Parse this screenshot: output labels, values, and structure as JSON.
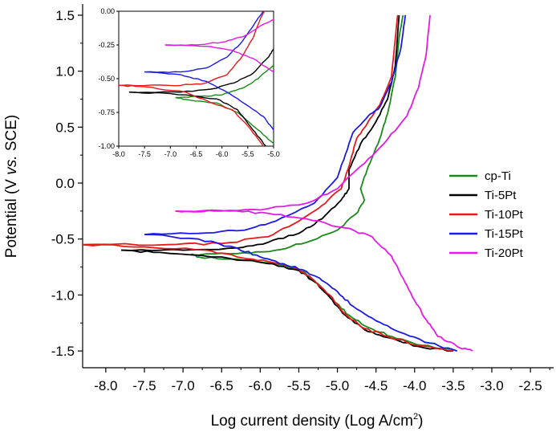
{
  "chart_data": [
    {
      "type": "line",
      "title": "",
      "xlabel": "Log current density (Log A/cm",
      "xlabel_sup": "2",
      "xlabel_close": ")",
      "ylabel_pre": "Potential (V ",
      "ylabel_italic": "vs.",
      "ylabel_post": " SCE)",
      "xlim": [
        -8.3,
        -2.2
      ],
      "ylim": [
        -1.65,
        1.6
      ],
      "x_ticks": [
        "-8.0",
        "-7.5",
        "-7.0",
        "-6.5",
        "-6.0",
        "-5.5",
        "-5.0",
        "-4.5",
        "-4.0",
        "-3.5",
        "-3.0",
        "-2.5"
      ],
      "x_tick_values": [
        -8.0,
        -7.5,
        -7.0,
        -6.5,
        -6.0,
        -5.5,
        -5.0,
        -4.5,
        -4.0,
        -3.5,
        -3.0,
        -2.5
      ],
      "y_ticks": [
        "1.5",
        "1.0",
        "0.5",
        "0.0",
        "-0.5",
        "-1.0",
        "-1.5"
      ],
      "y_tick_values": [
        1.5,
        1.0,
        0.5,
        0.0,
        -0.5,
        -1.0,
        -1.5
      ],
      "grid": false,
      "legend_position": "right",
      "series": [
        {
          "name": "cp-Ti",
          "color": "#1a8a1a",
          "cathodic": [
            [
              -3.45,
              -1.5
            ],
            [
              -3.9,
              -1.45
            ],
            [
              -4.3,
              -1.37
            ],
            [
              -4.6,
              -1.29
            ],
            [
              -4.85,
              -1.18
            ],
            [
              -5.05,
              -1.05
            ],
            [
              -5.25,
              -0.9
            ],
            [
              -5.45,
              -0.79
            ],
            [
              -5.8,
              -0.72
            ],
            [
              -6.3,
              -0.68
            ],
            [
              -6.8,
              -0.66
            ],
            [
              -6.9,
              -0.64
            ]
          ],
          "anodic": [
            [
              -6.9,
              -0.64
            ],
            [
              -6.3,
              -0.63
            ],
            [
              -5.8,
              -0.6
            ],
            [
              -5.4,
              -0.53
            ],
            [
              -5.0,
              -0.42
            ],
            [
              -4.75,
              -0.27
            ],
            [
              -4.65,
              -0.15
            ],
            [
              -4.7,
              -0.05
            ],
            [
              -4.6,
              0.15
            ],
            [
              -4.45,
              0.4
            ],
            [
              -4.35,
              0.62
            ],
            [
              -4.25,
              0.95
            ],
            [
              -4.2,
              1.3
            ],
            [
              -4.15,
              1.5
            ]
          ]
        },
        {
          "name": "Ti-5Pt",
          "color": "#000000",
          "cathodic": [
            [
              -3.5,
              -1.5
            ],
            [
              -3.95,
              -1.46
            ],
            [
              -4.35,
              -1.38
            ],
            [
              -4.65,
              -1.31
            ],
            [
              -4.9,
              -1.18
            ],
            [
              -5.1,
              -1.02
            ],
            [
              -5.3,
              -0.88
            ],
            [
              -5.5,
              -0.78
            ],
            [
              -5.9,
              -0.72
            ],
            [
              -6.5,
              -0.66
            ],
            [
              -7.3,
              -0.62
            ],
            [
              -7.8,
              -0.6
            ]
          ],
          "anodic": [
            [
              -7.8,
              -0.6
            ],
            [
              -7.0,
              -0.6
            ],
            [
              -6.3,
              -0.58
            ],
            [
              -5.9,
              -0.53
            ],
            [
              -5.5,
              -0.45
            ],
            [
              -5.2,
              -0.32
            ],
            [
              -4.95,
              -0.15
            ],
            [
              -4.85,
              -0.05
            ],
            [
              -4.85,
              0.12
            ],
            [
              -4.7,
              0.35
            ],
            [
              -4.5,
              0.55
            ],
            [
              -4.35,
              0.75
            ],
            [
              -4.25,
              1.05
            ],
            [
              -4.2,
              1.5
            ]
          ]
        },
        {
          "name": "Ti-10Pt",
          "color": "#e41a1a",
          "cathodic": [
            [
              -3.5,
              -1.5
            ],
            [
              -3.95,
              -1.45
            ],
            [
              -4.35,
              -1.37
            ],
            [
              -4.65,
              -1.3
            ],
            [
              -4.9,
              -1.17
            ],
            [
              -5.1,
              -1.0
            ],
            [
              -5.3,
              -0.87
            ],
            [
              -5.5,
              -0.77
            ],
            [
              -5.9,
              -0.7
            ],
            [
              -6.3,
              -0.66
            ],
            [
              -6.7,
              -0.6
            ],
            [
              -7.5,
              -0.57
            ],
            [
              -8.3,
              -0.55
            ]
          ],
          "anodic": [
            [
              -8.3,
              -0.55
            ],
            [
              -7.2,
              -0.55
            ],
            [
              -6.5,
              -0.54
            ],
            [
              -5.9,
              -0.48
            ],
            [
              -5.5,
              -0.34
            ],
            [
              -5.2,
              -0.2
            ],
            [
              -4.95,
              -0.05
            ],
            [
              -4.85,
              0.15
            ],
            [
              -4.75,
              0.4
            ],
            [
              -4.6,
              0.55
            ],
            [
              -4.45,
              0.7
            ],
            [
              -4.3,
              0.95
            ],
            [
              -4.22,
              1.5
            ]
          ]
        },
        {
          "name": "Ti-15Pt",
          "color": "#1a1ae4",
          "cathodic": [
            [
              -3.45,
              -1.5
            ],
            [
              -3.8,
              -1.43
            ],
            [
              -4.2,
              -1.33
            ],
            [
              -4.5,
              -1.23
            ],
            [
              -4.8,
              -1.1
            ],
            [
              -5.0,
              -0.97
            ],
            [
              -5.2,
              -0.87
            ],
            [
              -5.4,
              -0.79
            ],
            [
              -5.7,
              -0.72
            ],
            [
              -6.0,
              -0.66
            ],
            [
              -6.3,
              -0.58
            ],
            [
              -6.8,
              -0.5
            ],
            [
              -7.5,
              -0.46
            ]
          ],
          "anodic": [
            [
              -7.5,
              -0.46
            ],
            [
              -6.8,
              -0.45
            ],
            [
              -6.2,
              -0.42
            ],
            [
              -5.8,
              -0.34
            ],
            [
              -5.3,
              -0.18
            ],
            [
              -5.0,
              0.05
            ],
            [
              -4.9,
              0.25
            ],
            [
              -4.8,
              0.45
            ],
            [
              -4.6,
              0.6
            ],
            [
              -4.45,
              0.68
            ],
            [
              -4.3,
              0.9
            ],
            [
              -4.18,
              1.2
            ],
            [
              -4.12,
              1.5
            ]
          ]
        },
        {
          "name": "Ti-20Pt",
          "color": "#e41ae4",
          "cathodic": [
            [
              -3.25,
              -1.5
            ],
            [
              -3.45,
              -1.46
            ],
            [
              -3.7,
              -1.37
            ],
            [
              -3.85,
              -1.22
            ],
            [
              -4.0,
              -1.05
            ],
            [
              -4.15,
              -0.85
            ],
            [
              -4.3,
              -0.65
            ],
            [
              -4.55,
              -0.48
            ],
            [
              -4.9,
              -0.4
            ],
            [
              -5.4,
              -0.32
            ],
            [
              -5.9,
              -0.27
            ],
            [
              -6.4,
              -0.25
            ],
            [
              -7.1,
              -0.25
            ]
          ],
          "anodic": [
            [
              -7.1,
              -0.25
            ],
            [
              -6.6,
              -0.25
            ],
            [
              -6.0,
              -0.24
            ],
            [
              -5.4,
              -0.18
            ],
            [
              -5.0,
              -0.05
            ],
            [
              -4.7,
              0.15
            ],
            [
              -4.4,
              0.35
            ],
            [
              -4.1,
              0.6
            ],
            [
              -3.95,
              0.85
            ],
            [
              -3.85,
              1.15
            ],
            [
              -3.8,
              1.5
            ]
          ]
        }
      ]
    },
    {
      "type": "line",
      "title": "",
      "xlim": [
        -8.0,
        -5.0
      ],
      "ylim": [
        -1.0,
        0.0
      ],
      "x_ticks": [
        "-8.0",
        "-7.5",
        "-7.0",
        "-6.5",
        "-6.0",
        "-5.5",
        "-5.0"
      ],
      "x_tick_values": [
        -8.0,
        -7.5,
        -7.0,
        -6.5,
        -6.0,
        -5.5,
        -5.0
      ],
      "y_ticks": [
        "0.00",
        "-0.25",
        "-0.50",
        "-0.75",
        "-1.00"
      ],
      "y_tick_values": [
        0.0,
        -0.25,
        -0.5,
        -0.75,
        -1.0
      ],
      "grid": false,
      "series": [
        {
          "name": "cp-Ti",
          "color": "#1a8a1a",
          "cathodic": [
            [
              -5.0,
              -0.98
            ],
            [
              -5.3,
              -0.88
            ],
            [
              -5.7,
              -0.75
            ],
            [
              -6.1,
              -0.68
            ],
            [
              -6.6,
              -0.66
            ],
            [
              -6.9,
              -0.64
            ]
          ],
          "anodic": [
            [
              -6.9,
              -0.64
            ],
            [
              -6.4,
              -0.63
            ],
            [
              -6.0,
              -0.62
            ],
            [
              -5.6,
              -0.57
            ],
            [
              -5.3,
              -0.5
            ],
            [
              -5.0,
              -0.4
            ]
          ]
        },
        {
          "name": "Ti-5Pt",
          "color": "#000000",
          "cathodic": [
            [
              -5.15,
              -1.0
            ],
            [
              -5.4,
              -0.88
            ],
            [
              -5.7,
              -0.73
            ],
            [
              -6.1,
              -0.65
            ],
            [
              -7.0,
              -0.61
            ],
            [
              -7.8,
              -0.6
            ]
          ],
          "anodic": [
            [
              -7.8,
              -0.6
            ],
            [
              -6.8,
              -0.6
            ],
            [
              -6.1,
              -0.57
            ],
            [
              -5.7,
              -0.52
            ],
            [
              -5.4,
              -0.46
            ],
            [
              -5.1,
              -0.34
            ],
            [
              -5.0,
              -0.28
            ]
          ]
        },
        {
          "name": "Ti-10Pt",
          "color": "#e41a1a",
          "cathodic": [
            [
              -5.2,
              -1.0
            ],
            [
              -5.5,
              -0.85
            ],
            [
              -5.8,
              -0.73
            ],
            [
              -6.2,
              -0.68
            ],
            [
              -6.7,
              -0.6
            ],
            [
              -7.5,
              -0.56
            ],
            [
              -8.0,
              -0.55
            ]
          ],
          "anodic": [
            [
              -8.0,
              -0.55
            ],
            [
              -7.0,
              -0.55
            ],
            [
              -6.4,
              -0.54
            ],
            [
              -5.9,
              -0.47
            ],
            [
              -5.6,
              -0.33
            ],
            [
              -5.4,
              -0.2
            ],
            [
              -5.25,
              -0.05
            ],
            [
              -5.18,
              0.0
            ]
          ]
        },
        {
          "name": "Ti-15Pt",
          "color": "#1a1ae4",
          "cathodic": [
            [
              -5.0,
              -0.88
            ],
            [
              -5.2,
              -0.78
            ],
            [
              -5.5,
              -0.7
            ],
            [
              -5.9,
              -0.6
            ],
            [
              -6.3,
              -0.52
            ],
            [
              -6.8,
              -0.47
            ],
            [
              -7.5,
              -0.45
            ]
          ],
          "anodic": [
            [
              -7.5,
              -0.45
            ],
            [
              -6.8,
              -0.45
            ],
            [
              -6.3,
              -0.42
            ],
            [
              -5.9,
              -0.34
            ],
            [
              -5.6,
              -0.22
            ],
            [
              -5.35,
              -0.08
            ],
            [
              -5.2,
              0.0
            ]
          ]
        },
        {
          "name": "Ti-20Pt",
          "color": "#e41ae4",
          "cathodic": [
            [
              -5.0,
              -0.45
            ],
            [
              -5.4,
              -0.35
            ],
            [
              -5.8,
              -0.29
            ],
            [
              -6.3,
              -0.26
            ],
            [
              -7.1,
              -0.25
            ]
          ],
          "anodic": [
            [
              -7.1,
              -0.25
            ],
            [
              -6.5,
              -0.25
            ],
            [
              -6.0,
              -0.23
            ],
            [
              -5.6,
              -0.19
            ],
            [
              -5.3,
              -0.12
            ],
            [
              -5.0,
              -0.06
            ]
          ]
        }
      ]
    }
  ]
}
